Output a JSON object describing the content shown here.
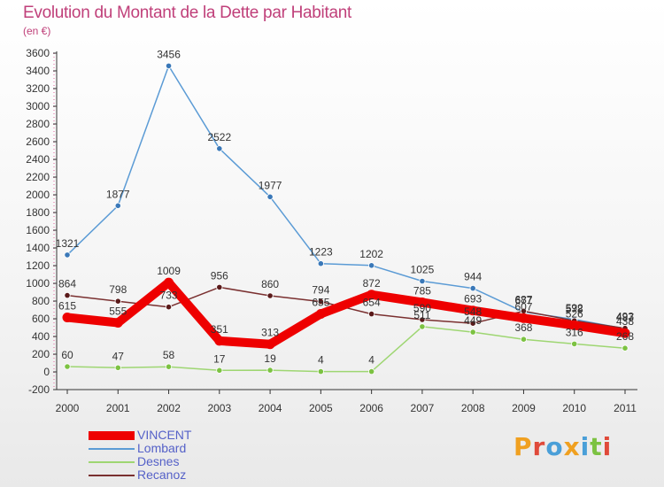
{
  "title": "Evolution du Montant de la Dette par Habitant",
  "subtitle": "(en €)",
  "logo": {
    "text": "Proxiti",
    "letters": [
      {
        "ch": "P",
        "color": "#f0a020"
      },
      {
        "ch": "r",
        "color": "#e04a3a"
      },
      {
        "ch": "o",
        "color": "#4a9fd8"
      },
      {
        "ch": "x",
        "color": "#f0a020"
      },
      {
        "ch": "i",
        "color": "#4a9fd8"
      },
      {
        "ch": "t",
        "color": "#7cc242"
      },
      {
        "ch": "i",
        "color": "#e04a3a"
      }
    ]
  },
  "chart_data": {
    "type": "line",
    "title": "Evolution du Montant de la Dette par Habitant",
    "subtitle": "(en €)",
    "x": [
      "2000",
      "2001",
      "2002",
      "2003",
      "2004",
      "2005",
      "2006",
      "2007",
      "2008",
      "2009",
      "2010",
      "2011"
    ],
    "ylim": [
      -200,
      3600
    ],
    "yticks": [
      -200,
      0,
      200,
      400,
      600,
      800,
      1000,
      1200,
      1400,
      1600,
      1800,
      2000,
      2200,
      2400,
      2600,
      2800,
      3000,
      3200,
      3400,
      3600
    ],
    "grid": false,
    "legend_position": "bottom-left",
    "series": [
      {
        "name": "Lombard",
        "color": "#5b9bd5",
        "point_color": "#3a78b8",
        "line_width": 1.5,
        "values": [
          1321,
          1877,
          3456,
          2522,
          1977,
          1223,
          1202,
          1025,
          944,
          677,
          592,
          487
        ]
      },
      {
        "name": "Desnes",
        "color": "#9ed672",
        "point_color": "#7cc242",
        "line_width": 1.5,
        "values": [
          60,
          47,
          58,
          17,
          19,
          4,
          4,
          511,
          449,
          368,
          316,
          268
        ]
      },
      {
        "name": "Recanoz",
        "color": "#7a3030",
        "point_color": "#5a1a1a",
        "line_width": 1.5,
        "values": [
          864,
          798,
          733,
          956,
          860,
          794,
          654,
          590,
          548,
          687,
          578,
          493
        ]
      },
      {
        "name": "VINCENT",
        "color": "#ee0000",
        "point_color": "#ee0000",
        "line_width": 10,
        "values": [
          615,
          555,
          1009,
          351,
          313,
          655,
          872,
          785,
          693,
          607,
          526,
          438
        ]
      }
    ]
  }
}
